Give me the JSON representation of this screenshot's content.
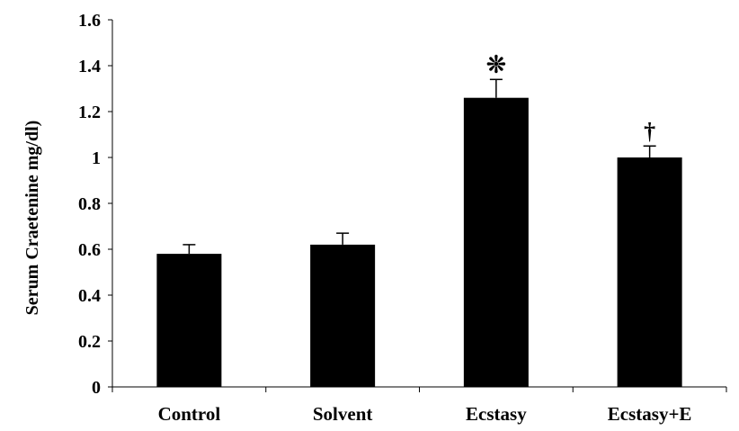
{
  "chart_data": {
    "type": "bar",
    "title": "",
    "xlabel": "",
    "ylabel": "Serum Craetenine mg/dl)",
    "categories": [
      "Control",
      "Solvent",
      "Ecstasy",
      "Ecstasy+E"
    ],
    "values": [
      0.58,
      0.62,
      1.26,
      1.0
    ],
    "errors": [
      0.04,
      0.05,
      0.08,
      0.05
    ],
    "annotations": [
      "",
      "",
      "❊",
      "†"
    ],
    "ylim": [
      0,
      1.6
    ],
    "yticks": [
      0,
      0.2,
      0.4,
      0.6,
      0.8,
      1,
      1.2,
      1.4,
      1.6
    ],
    "ytick_labels": [
      "0",
      "0.2",
      "0.4",
      "0.6",
      "0.8",
      "1",
      "1.2",
      "1.4",
      "1.6"
    ],
    "grid": false,
    "legend": "none",
    "bar_color": "#000000"
  }
}
